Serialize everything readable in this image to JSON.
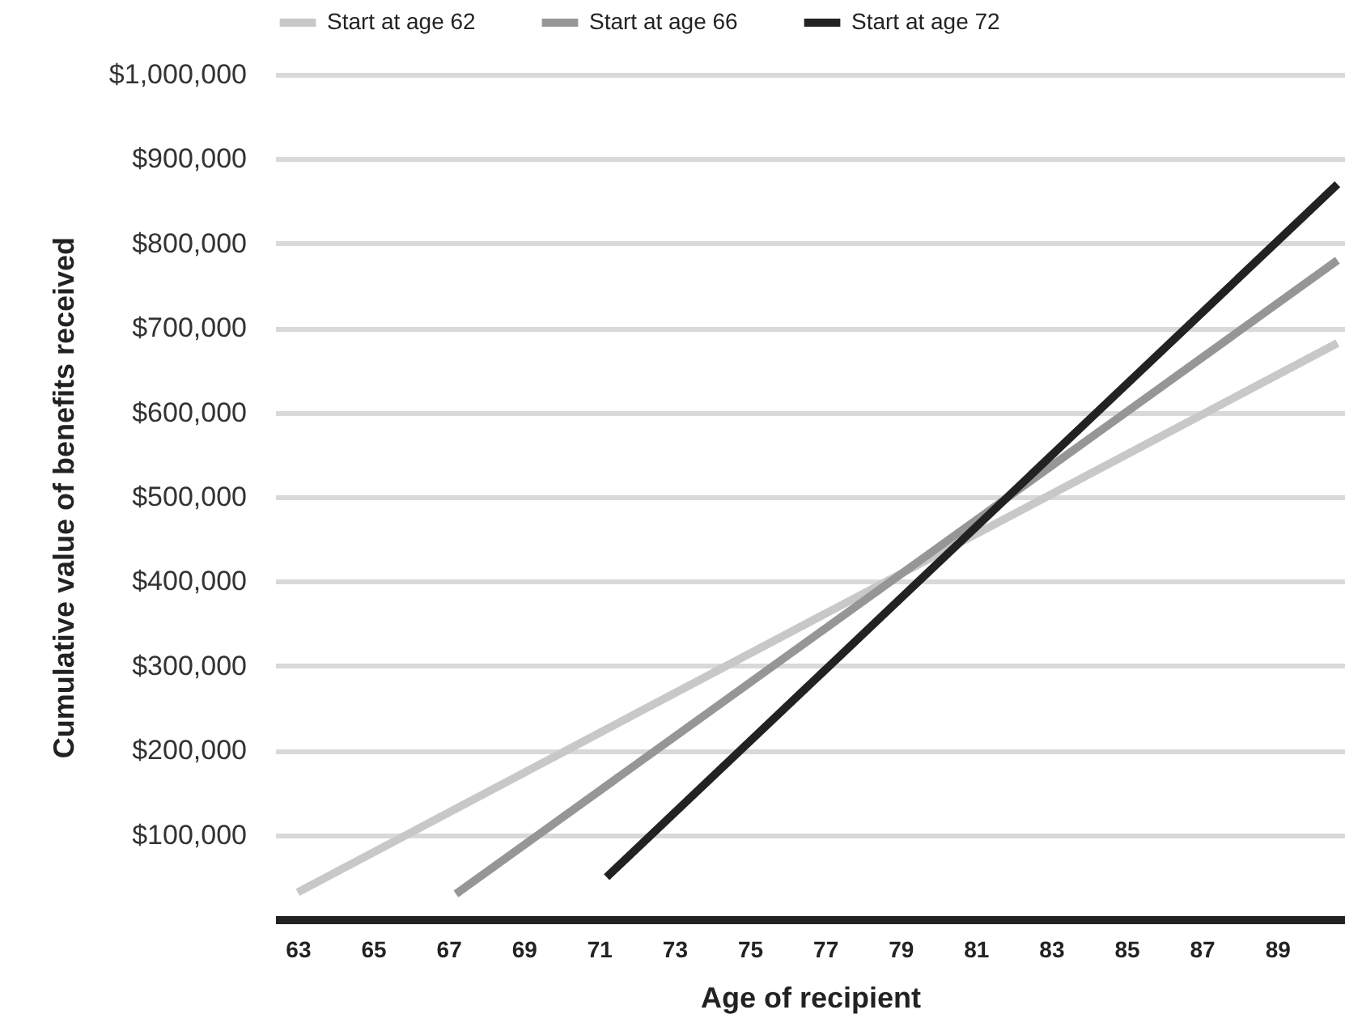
{
  "chart_data": {
    "type": "line",
    "xlabel": "Age of recipient",
    "ylabel": "Cumulative value of benefits received",
    "xlim": [
      62.4,
      90.8
    ],
    "xticks": [
      63,
      65,
      67,
      69,
      71,
      73,
      75,
      77,
      79,
      81,
      83,
      85,
      87,
      89
    ],
    "ylim": [
      0,
      1000000
    ],
    "yticks": [
      {
        "value": 100000,
        "label": "$100,000"
      },
      {
        "value": 200000,
        "label": "$200,000"
      },
      {
        "value": 300000,
        "label": "$300,000"
      },
      {
        "value": 400000,
        "label": "$400,000"
      },
      {
        "value": 500000,
        "label": "$500,000"
      },
      {
        "value": 600000,
        "label": "$600,000"
      },
      {
        "value": 700000,
        "label": "$700,000"
      },
      {
        "value": 800000,
        "label": "$800,000"
      },
      {
        "value": 900000,
        "label": "$900,000"
      },
      {
        "value": 1000000,
        "label": "$1,000,000"
      }
    ],
    "series": [
      {
        "name": "Start at age 62",
        "color": "#c8c8c8",
        "x": [
          63,
          90.6
        ],
        "values": [
          32000,
          682000
        ]
      },
      {
        "name": "Start at age 66",
        "color": "#969696",
        "x": [
          67.2,
          90.6
        ],
        "values": [
          30000,
          780000
        ]
      },
      {
        "name": "Start at age 72",
        "color": "#222222",
        "x": [
          71.2,
          90.6
        ],
        "values": [
          50000,
          870000
        ]
      }
    ],
    "grid": "y",
    "legend": "top",
    "marker": "none",
    "line_style": "solid"
  }
}
